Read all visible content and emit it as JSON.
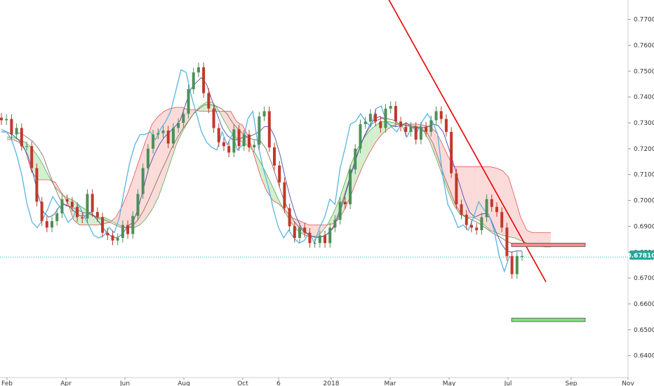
{
  "chart_data": {
    "type": "candlestick",
    "title": "",
    "xlabel": "",
    "ylabel": "",
    "x_ticks": [
      "Feb",
      "Apr",
      "Jun",
      "Aug",
      "Oct",
      "6",
      "2018",
      "Mar",
      "May",
      "Jul",
      "Sep",
      "Nov"
    ],
    "y_ticks": [
      "0.77000",
      "0.76000",
      "0.75000",
      "0.74000",
      "0.73000",
      "0.72000",
      "0.71000",
      "0.70000",
      "0.69000",
      "0.68000",
      "0.67000",
      "0.66000",
      "0.65000",
      "0.64000"
    ],
    "ylim": [
      0.6315,
      0.7775
    ],
    "grid": false,
    "legend": "none",
    "current_price": "0.67810",
    "series": [
      {
        "name": "",
        "kind": "close",
        "values": [
          0.731,
          0.7315,
          0.7255,
          0.728,
          0.721,
          0.721,
          0.7125,
          0.6995,
          0.692,
          0.6895,
          0.692,
          0.695,
          0.7005,
          0.6995,
          0.6975,
          0.6935,
          0.693,
          0.7025,
          0.6955,
          0.6935,
          0.6875,
          0.6865,
          0.6845,
          0.6855,
          0.6905,
          0.687,
          0.694,
          0.7025,
          0.7125,
          0.72,
          0.7255,
          0.726,
          0.727,
          0.722,
          0.728,
          0.73,
          0.7335,
          0.743,
          0.7495,
          0.7515,
          0.7415,
          0.7355,
          0.728,
          0.7225,
          0.721,
          0.7185,
          0.7275,
          0.721,
          0.7255,
          0.7205,
          0.7215,
          0.7325,
          0.7345,
          0.7205,
          0.7135,
          0.707,
          0.697,
          0.69,
          0.6855,
          0.6895,
          0.6875,
          0.6835,
          0.6835,
          0.6865,
          0.6835,
          0.6895,
          0.6925,
          0.6995,
          0.6985,
          0.712,
          0.72,
          0.7295,
          0.7305,
          0.7335,
          0.7305,
          0.728,
          0.7355,
          0.7365,
          0.7305,
          0.7285,
          0.7265,
          0.7285,
          0.7235,
          0.7285,
          0.7265,
          0.731,
          0.7345,
          0.7315,
          0.7265,
          0.7105,
          0.6985,
          0.6945,
          0.6905,
          0.6895,
          0.6885,
          0.6935,
          0.7005,
          0.6975,
          0.6955,
          0.6895,
          0.6785,
          0.6715,
          0.6785,
          0.6785
        ]
      },
      {
        "name": "",
        "kind": "tenkan",
        "values": [
          0.7265,
          0.7265,
          0.7255,
          0.724,
          0.7215,
          0.7175,
          0.7105,
          0.702,
          0.6955,
          0.6935,
          0.6945,
          0.6975,
          0.6985,
          0.6975,
          0.6955,
          0.694,
          0.694,
          0.6955,
          0.693,
          0.6905,
          0.6875,
          0.686,
          0.6855,
          0.687,
          0.69,
          0.6915,
          0.697,
          0.7045,
          0.7125,
          0.7175,
          0.7215,
          0.7245,
          0.7265,
          0.7285,
          0.731,
          0.737,
          0.743,
          0.7455,
          0.7475,
          0.745,
          0.739,
          0.7335,
          0.728,
          0.725,
          0.7235,
          0.7235,
          0.7245,
          0.7245,
          0.7255,
          0.7265,
          0.7285,
          0.7285,
          0.7245,
          0.7175,
          0.7085,
          0.7005,
          0.694,
          0.6895,
          0.6875,
          0.686,
          0.686,
          0.686,
          0.687,
          0.689,
          0.6935,
          0.6995,
          0.7065,
          0.7135,
          0.7195,
          0.725,
          0.729,
          0.7315,
          0.7325,
          0.731,
          0.729,
          0.7285,
          0.729,
          0.73,
          0.7285,
          0.728,
          0.728,
          0.7285,
          0.7295,
          0.729,
          0.7265,
          0.7205,
          0.714,
          0.707,
          0.7005,
          0.6955,
          0.6935,
          0.6945,
          0.695,
          0.693,
          0.688,
          0.6835,
          0.6805,
          0.68,
          0.6805,
          0.6805
        ]
      },
      {
        "name": "",
        "kind": "kijun",
        "values": [
          0.726,
          0.726,
          0.7245,
          0.723,
          0.7205,
          0.717,
          0.711,
          0.7055,
          0.7005,
          0.698,
          0.6975,
          0.6965,
          0.6955,
          0.695,
          0.694,
          0.693,
          0.6925,
          0.6915,
          0.6905,
          0.6895,
          0.6895,
          0.69,
          0.6925,
          0.696,
          0.7005,
          0.7055,
          0.7105,
          0.715,
          0.72,
          0.724,
          0.7275,
          0.7305,
          0.7335,
          0.7355,
          0.737,
          0.737,
          0.7365,
          0.7355,
          0.7335,
          0.73,
          0.7275,
          0.7255,
          0.724,
          0.7235,
          0.723,
          0.72,
          0.7145,
          0.708,
          0.7015,
          0.6965,
          0.692,
          0.6895,
          0.6875,
          0.6865,
          0.6855,
          0.686,
          0.687,
          0.6895,
          0.695,
          0.7015,
          0.7085,
          0.7155,
          0.7215,
          0.726,
          0.7295,
          0.731,
          0.732,
          0.7315,
          0.731,
          0.7295,
          0.729,
          0.7285,
          0.7285,
          0.7275,
          0.726,
          0.722,
          0.716,
          0.7095,
          0.704,
          0.6985,
          0.695,
          0.6935,
          0.6925,
          0.6915,
          0.69,
          0.6885,
          0.687,
          0.686,
          0.6845,
          0.6835,
          0.683,
          0.6825
        ]
      },
      {
        "name": "",
        "kind": "span_a",
        "values": [
          0.7245,
          0.7245,
          0.7235,
          0.7225,
          0.7205,
          0.7175,
          0.7135,
          0.709,
          0.705,
          0.7025,
          0.701,
          0.7,
          0.698,
          0.6965,
          0.6945,
          0.6935,
          0.6935,
          0.6925,
          0.691,
          0.69,
          0.6895,
          0.6895,
          0.6905,
          0.693,
          0.6965,
          0.701,
          0.7075,
          0.7145,
          0.7215,
          0.7265,
          0.7305,
          0.734,
          0.7365,
          0.738,
          0.738,
          0.735,
          0.7305,
          0.7265,
          0.724,
          0.7225,
          0.721,
          0.7185,
          0.7145,
          0.71,
          0.705,
          0.7,
          0.6955,
          0.6915,
          0.6885,
          0.687,
          0.686,
          0.686,
          0.6875,
          0.6905,
          0.695,
          0.7005,
          0.7075,
          0.7145,
          0.72,
          0.724,
          0.727,
          0.729,
          0.7305,
          0.7305,
          0.73,
          0.7295,
          0.729,
          0.729,
          0.7285,
          0.7265,
          0.7225,
          0.7165,
          0.71,
          0.7035,
          0.698,
          0.6945,
          0.6935,
          0.6935,
          0.6925,
          0.6905,
          0.6885,
          0.6875,
          0.6865,
          0.686,
          0.6855,
          0.6845,
          0.6835,
          0.6825,
          0.6825,
          0.682,
          0.682
        ]
      },
      {
        "name": "",
        "kind": "span_b",
        "values": [
          0.7235,
          0.7235,
          0.7225,
          0.7195,
          0.7115,
          0.708,
          0.708,
          0.708,
          0.707,
          0.703,
          0.6995,
          0.6925,
          0.6905,
          0.6905,
          0.6905,
          0.6905,
          0.691,
          0.6915,
          0.6935,
          0.6975,
          0.703,
          0.7095,
          0.7165,
          0.7235,
          0.7295,
          0.7325,
          0.7345,
          0.7355,
          0.736,
          0.736,
          0.735,
          0.735,
          0.7345,
          0.7345,
          0.7345,
          0.7345,
          0.7345,
          0.7345,
          0.7305,
          0.729,
          0.7245,
          0.7165,
          0.709,
          0.7035,
          0.7,
          0.6985,
          0.6965,
          0.6935,
          0.6925,
          0.6915,
          0.6905,
          0.6905,
          0.6905,
          0.6905,
          0.691,
          0.693,
          0.697,
          0.7025,
          0.7085,
          0.714,
          0.7185,
          0.7225,
          0.7255,
          0.7275,
          0.729,
          0.7295,
          0.7295,
          0.7295,
          0.7295,
          0.729,
          0.7285,
          0.7265,
          0.722,
          0.717,
          0.713,
          0.713,
          0.713,
          0.713,
          0.713,
          0.713,
          0.713,
          0.7125,
          0.7115,
          0.709,
          0.7015,
          0.6935,
          0.6885,
          0.6875,
          0.6875,
          0.6875,
          0.6875
        ]
      },
      {
        "name": "",
        "kind": "chikou",
        "values": [
          0.7275,
          0.7265,
          0.7235,
          0.7175,
          0.7095,
          0.6985,
          0.6915,
          0.6895,
          0.6925,
          0.6965,
          0.7015,
          0.6985,
          0.6955,
          0.6915,
          0.6935,
          0.6985,
          0.6945,
          0.6905,
          0.6865,
          0.6855,
          0.6865,
          0.6895,
          0.6875,
          0.6935,
          0.7045,
          0.7145,
          0.7215,
          0.7255,
          0.7255,
          0.7265,
          0.7235,
          0.7275,
          0.7305,
          0.7345,
          0.7425,
          0.7505,
          0.7495,
          0.7405,
          0.7335,
          0.7265,
          0.7225,
          0.7205,
          0.7195,
          0.7265,
          0.7215,
          0.7255,
          0.7195,
          0.7215,
          0.7315,
          0.7345,
          0.7215,
          0.7125,
          0.7055,
          0.6965,
          0.6895,
          0.6855,
          0.6885,
          0.6855,
          0.6835,
          0.6845,
          0.6875,
          0.6835,
          0.6895,
          0.6935,
          0.7005,
          0.6985,
          0.7125,
          0.7205,
          0.7295,
          0.7305,
          0.7335,
          0.7305,
          0.7285,
          0.7355,
          0.7365,
          0.7305,
          0.7285,
          0.7265,
          0.7295,
          0.7245,
          0.7285,
          0.7265,
          0.7305,
          0.7335,
          0.7305,
          0.7255,
          0.7095,
          0.6985,
          0.6945,
          0.6895,
          0.6905,
          0.6885,
          0.6935,
          0.6995,
          0.6965,
          0.6945,
          0.6885,
          0.6785,
          0.6725,
          0.6785
        ]
      }
    ],
    "annotations": [
      {
        "kind": "trendline",
        "color": "#e60000",
        "from": {
          "x": "2018-03",
          "y": 0.7845
        },
        "to": {
          "x": "2018-08",
          "y": 0.6685
        }
      },
      {
        "kind": "zone",
        "color": "#f28b8b",
        "y_from": 0.6835,
        "y_to": 0.6825,
        "x_from": "2018-07",
        "x_to": "2018-09"
      },
      {
        "kind": "zone",
        "color": "#80e080",
        "y_from": 0.6545,
        "y_to": 0.6535,
        "x_from": "2018-07",
        "x_to": "2018-09"
      },
      {
        "kind": "horizontal_line",
        "color": "#26a69a",
        "style": "dotted",
        "y": 0.6781
      }
    ]
  }
}
